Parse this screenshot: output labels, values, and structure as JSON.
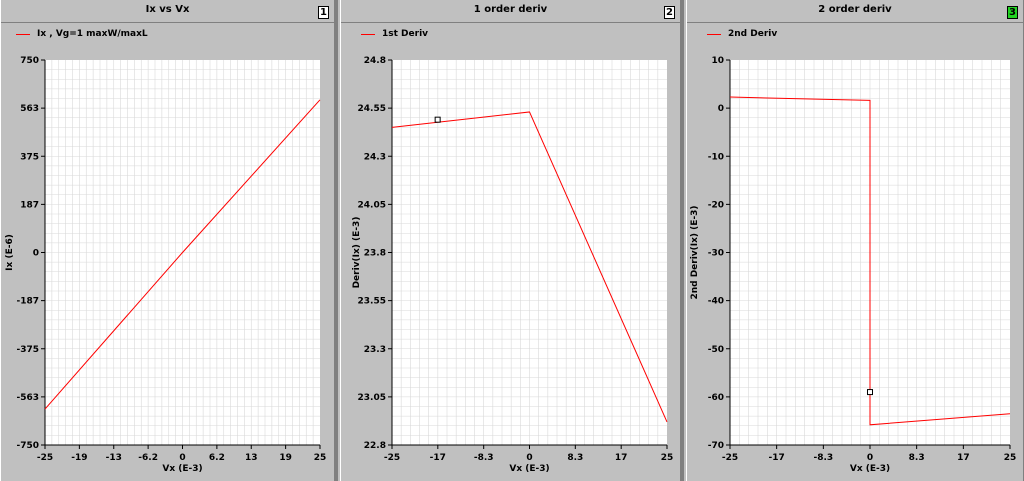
{
  "colors": {
    "curve": "#ff0000",
    "grid": "#d9d9d9",
    "active_panel_number": "#22d422"
  },
  "panels": [
    {
      "title": "Ix vs Vx",
      "number": "1",
      "legend": "Ix , Vg=1 maxW/maxL",
      "ylabel": "Ix (E-6)",
      "xlabel": "Vx (E-3)"
    },
    {
      "title": "1 order deriv",
      "number": "2",
      "legend": "1st Deriv",
      "ylabel": "Deriv(Ix) (E-3)",
      "xlabel": "Vx (E-3)"
    },
    {
      "title": "2 order deriv",
      "number": "3",
      "legend": "2nd Deriv",
      "ylabel": "2nd Deriv(Ix) (E-3)",
      "xlabel": "Vx (E-3)"
    }
  ],
  "chart_data": [
    {
      "type": "line",
      "title": "Ix vs Vx",
      "xlabel": "Vx (E-3)",
      "ylabel": "Ix (E-6)",
      "xlim": [
        -25,
        25
      ],
      "ylim": [
        -750,
        750
      ],
      "x_ticks": [
        "-25",
        "-19",
        "-13",
        "-6.2",
        "0",
        "6.2",
        "13",
        "19",
        "25"
      ],
      "x_tick_values": [
        -25,
        -18.75,
        -12.5,
        -6.25,
        0,
        6.25,
        12.5,
        18.75,
        25
      ],
      "y_ticks": [
        "750",
        "563",
        "375",
        "187",
        "0",
        "-187",
        "-375",
        "-563",
        "-750"
      ],
      "y_tick_values": [
        750,
        562.5,
        375,
        187.5,
        0,
        -187.5,
        -375,
        -562.5,
        -750
      ],
      "grid": true,
      "legend_position": "top-left",
      "series": [
        {
          "name": "Ix , Vg=1 maxW/maxL",
          "x": [
            -25,
            0,
            25
          ],
          "y": [
            -610,
            0,
            595
          ]
        }
      ]
    },
    {
      "type": "line",
      "title": "1 order deriv",
      "xlabel": "Vx (E-3)",
      "ylabel": "Deriv(Ix) (E-3)",
      "xlim": [
        -25,
        25
      ],
      "ylim": [
        22.8,
        24.8
      ],
      "x_ticks": [
        "-25",
        "-17",
        "-8.3",
        "0",
        "8.3",
        "17",
        "25"
      ],
      "x_tick_values": [
        -25,
        -16.67,
        -8.33,
        0,
        8.33,
        16.67,
        25
      ],
      "y_ticks": [
        "24.8",
        "24.55",
        "24.3",
        "24.05",
        "23.8",
        "23.55",
        "23.3",
        "23.05",
        "22.8"
      ],
      "y_tick_values": [
        24.8,
        24.55,
        24.3,
        24.05,
        23.8,
        23.55,
        23.3,
        23.05,
        22.8
      ],
      "grid": true,
      "legend_position": "top-left",
      "series": [
        {
          "name": "1st Deriv",
          "x": [
            -25,
            0,
            25
          ],
          "y": [
            24.45,
            24.53,
            22.92
          ]
        }
      ],
      "markers": [
        {
          "x": -16.7,
          "y": 24.49
        }
      ]
    },
    {
      "type": "line",
      "title": "2 order deriv",
      "xlabel": "Vx (E-3)",
      "ylabel": "2nd Deriv(Ix) (E-3)",
      "xlim": [
        -25,
        25
      ],
      "ylim": [
        -70,
        10
      ],
      "x_ticks": [
        "-25",
        "-17",
        "-8.3",
        "0",
        "8.3",
        "17",
        "25"
      ],
      "x_tick_values": [
        -25,
        -16.67,
        -8.33,
        0,
        8.33,
        16.67,
        25
      ],
      "y_ticks": [
        "10",
        "0",
        "-10",
        "-20",
        "-30",
        "-40",
        "-50",
        "-60",
        "-70"
      ],
      "y_tick_values": [
        10,
        0,
        -10,
        -20,
        -30,
        -40,
        -50,
        -60,
        -70
      ],
      "grid": true,
      "legend_position": "top-left",
      "series": [
        {
          "name": "2nd Deriv",
          "x": [
            -25,
            0,
            0,
            25
          ],
          "y": [
            2.3,
            1.6,
            -65.8,
            -63.5
          ]
        }
      ],
      "markers": [
        {
          "x": 0,
          "y": -59
        }
      ]
    }
  ]
}
